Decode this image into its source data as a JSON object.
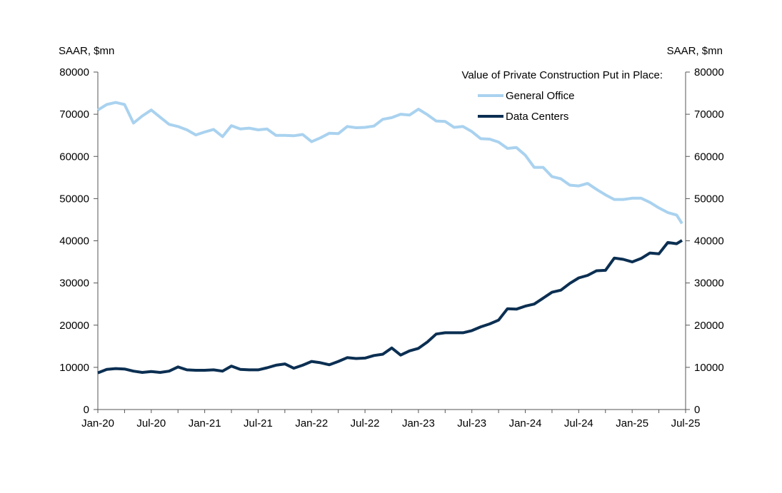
{
  "chart_data": {
    "type": "line",
    "title": "",
    "legend_title": "Value of Private Construction Put in Place:",
    "legend_position": "top-right",
    "ylabel_left": "SAAR, $mn",
    "ylabel_right": "SAAR, $mn",
    "xlabel": "",
    "ylim": [
      0,
      80000
    ],
    "yticks": [
      0,
      10000,
      20000,
      30000,
      40000,
      50000,
      60000,
      70000,
      80000
    ],
    "ytick_labels": [
      "0",
      "10000",
      "20000",
      "30000",
      "40000",
      "50000",
      "60000",
      "70000",
      "80000"
    ],
    "x_start": "2020-01",
    "x_end": "2025-07",
    "x": [
      "2020-01",
      "2020-02",
      "2020-03",
      "2020-04",
      "2020-05",
      "2020-06",
      "2020-07",
      "2020-08",
      "2020-09",
      "2020-10",
      "2020-11",
      "2020-12",
      "2021-01",
      "2021-02",
      "2021-03",
      "2021-04",
      "2021-05",
      "2021-06",
      "2021-07",
      "2021-08",
      "2021-09",
      "2021-10",
      "2021-11",
      "2021-12",
      "2022-01",
      "2022-02",
      "2022-03",
      "2022-04",
      "2022-05",
      "2022-06",
      "2022-07",
      "2022-08",
      "2022-09",
      "2022-10",
      "2022-11",
      "2022-12",
      "2023-01",
      "2023-02",
      "2023-03",
      "2023-04",
      "2023-05",
      "2023-06",
      "2023-07",
      "2023-08",
      "2023-09",
      "2023-10",
      "2023-11",
      "2023-12",
      "2024-01",
      "2024-02",
      "2024-03",
      "2024-04",
      "2024-05",
      "2024-06",
      "2024-07",
      "2024-08",
      "2024-09",
      "2024-10",
      "2024-11",
      "2024-12",
      "2025-01",
      "2025-02",
      "2025-03",
      "2025-04",
      "2025-05",
      "2025-06"
    ],
    "xtick_labels": [
      "Jan-20",
      "Jul-20",
      "Jan-21",
      "Jul-21",
      "Jan-22",
      "Jul-22",
      "Jan-23",
      "Jul-23",
      "Jan-24",
      "Jul-24",
      "Jan-25",
      "Jul-25"
    ],
    "xtick_dates": [
      "2020-01",
      "2020-07",
      "2021-01",
      "2021-07",
      "2022-01",
      "2022-07",
      "2023-01",
      "2023-07",
      "2024-01",
      "2024-07",
      "2025-01",
      "2025-07"
    ],
    "grid": false,
    "series": [
      {
        "name": "General Office",
        "color": "#a9d2ef",
        "values": [
          71000,
          72300,
          72800,
          72300,
          67900,
          69600,
          71000,
          69300,
          67600,
          67100,
          66300,
          65100,
          65800,
          66400,
          64700,
          67300,
          66500,
          66700,
          66300,
          66500,
          65000,
          65000,
          64900,
          65200,
          63500,
          64400,
          65500,
          65400,
          67100,
          66800,
          66900,
          67200,
          68800,
          69200,
          70000,
          69800,
          71200,
          69900,
          68400,
          68300,
          66900,
          67100,
          65900,
          64200,
          64100,
          63400,
          61900,
          62100,
          60300,
          57400,
          57400,
          55200,
          54700,
          53200,
          53000,
          53600,
          52200,
          50900,
          49800,
          49800,
          50100,
          50100,
          49100,
          47800,
          46700,
          46100
        ],
        "end_value": 44100
      },
      {
        "name": "Data Centers",
        "color": "#0b2f52",
        "values": [
          8700,
          9500,
          9700,
          9600,
          9100,
          8800,
          9000,
          8800,
          9100,
          10100,
          9400,
          9300,
          9300,
          9400,
          9100,
          10300,
          9500,
          9400,
          9400,
          9900,
          10500,
          10800,
          9800,
          10500,
          11400,
          11100,
          10600,
          11400,
          12300,
          12100,
          12200,
          12800,
          13100,
          14600,
          12900,
          13900,
          14500,
          16000,
          17900,
          18200,
          18200,
          18200,
          18700,
          19600,
          20300,
          21200,
          23900,
          23800,
          24500,
          25000,
          26400,
          27800,
          28300,
          29900,
          31200,
          31800,
          32900,
          33000,
          35900,
          35600,
          35000,
          35800,
          37100,
          36900,
          39600,
          39300
        ],
        "end_value": 40100
      }
    ]
  }
}
